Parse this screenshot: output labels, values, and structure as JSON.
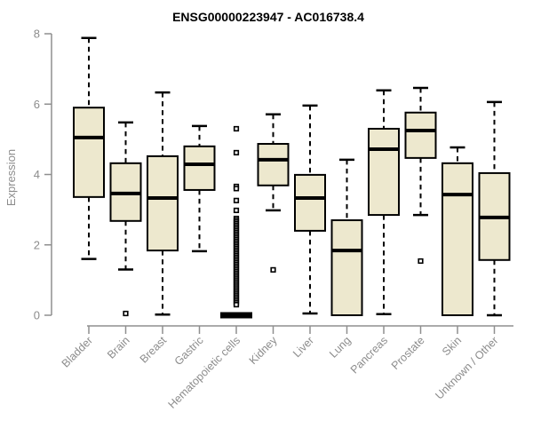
{
  "chart_data": {
    "type": "boxplot",
    "title": "ENSG00000223947 - AC016738.4",
    "xlabel": "",
    "ylabel": "Expression",
    "ylim": [
      0,
      8
    ],
    "yticks": [
      0,
      2,
      4,
      6,
      8
    ],
    "grid": false,
    "legend": "none",
    "categories": [
      "Bladder",
      "Brain",
      "Breast",
      "Gastric",
      "Hematopoietic cells",
      "Kidney",
      "Liver",
      "Lung",
      "Pancreas",
      "Prostate",
      "Skin",
      "Unknown / Other"
    ],
    "series": [
      {
        "name": "Bladder",
        "whisker_low": 1.6,
        "q1": 3.36,
        "median": 5.05,
        "q3": 5.9,
        "whisker_high": 7.88,
        "outliers": []
      },
      {
        "name": "Brain",
        "whisker_low": 1.3,
        "q1": 2.68,
        "median": 3.46,
        "q3": 4.32,
        "whisker_high": 5.48,
        "outliers": [
          0.05
        ]
      },
      {
        "name": "Breast",
        "whisker_low": 0.02,
        "q1": 1.84,
        "median": 3.33,
        "q3": 4.52,
        "whisker_high": 6.33,
        "outliers": []
      },
      {
        "name": "Gastric",
        "whisker_low": 1.82,
        "q1": 3.56,
        "median": 4.29,
        "q3": 4.8,
        "whisker_high": 5.38,
        "outliers": []
      },
      {
        "name": "Hematopoietic cells",
        "whisker_low": 0.0,
        "q1": 0.0,
        "median": 0.0,
        "q3": 0.0,
        "whisker_high": 0.0,
        "outliers": [
          5.3,
          4.62,
          3.66,
          3.6,
          3.26,
          2.98,
          2.75,
          2.7,
          2.65,
          2.6,
          2.55,
          2.5,
          2.45,
          2.4,
          2.35,
          2.3,
          2.25,
          2.2,
          2.15,
          2.1,
          2.05,
          2.0,
          1.95,
          1.9,
          1.85,
          1.8,
          1.75,
          1.7,
          1.65,
          1.6,
          1.55,
          1.5,
          1.45,
          1.4,
          1.35,
          1.3,
          1.25,
          1.2,
          1.15,
          1.1,
          1.05,
          1.0,
          0.95,
          0.9,
          0.85,
          0.8,
          0.75,
          0.7,
          0.65,
          0.6,
          0.55,
          0.5,
          0.45,
          0.4,
          0.35,
          0.3
        ]
      },
      {
        "name": "Kidney",
        "whisker_low": 2.98,
        "q1": 3.69,
        "median": 4.42,
        "q3": 4.87,
        "whisker_high": 5.71,
        "outliers": [
          1.29
        ]
      },
      {
        "name": "Liver",
        "whisker_low": 0.05,
        "q1": 2.4,
        "median": 3.33,
        "q3": 3.99,
        "whisker_high": 5.96,
        "outliers": []
      },
      {
        "name": "Lung",
        "whisker_low": 0.0,
        "q1": 0.0,
        "median": 1.84,
        "q3": 2.7,
        "whisker_high": 4.42,
        "outliers": []
      },
      {
        "name": "Pancreas",
        "whisker_low": 0.03,
        "q1": 2.85,
        "median": 4.72,
        "q3": 5.3,
        "whisker_high": 6.39,
        "outliers": []
      },
      {
        "name": "Prostate",
        "whisker_low": 2.85,
        "q1": 4.47,
        "median": 5.25,
        "q3": 5.76,
        "whisker_high": 6.46,
        "outliers": [
          1.54
        ]
      },
      {
        "name": "Skin",
        "whisker_low": 0.0,
        "q1": 0.0,
        "median": 3.43,
        "q3": 4.32,
        "whisker_high": 4.77,
        "outliers": []
      },
      {
        "name": "Unknown / Other",
        "whisker_low": 0.0,
        "q1": 1.57,
        "median": 2.78,
        "q3": 4.04,
        "whisker_high": 6.06,
        "outliers": []
      }
    ],
    "colors": {
      "box_fill": "#EDE8CE",
      "box_border": "#000000",
      "median": "#000000",
      "whisker": "#000000",
      "axis": "#8f8f8f",
      "tick_label": "#8c8c8c",
      "title": "#000000"
    }
  }
}
